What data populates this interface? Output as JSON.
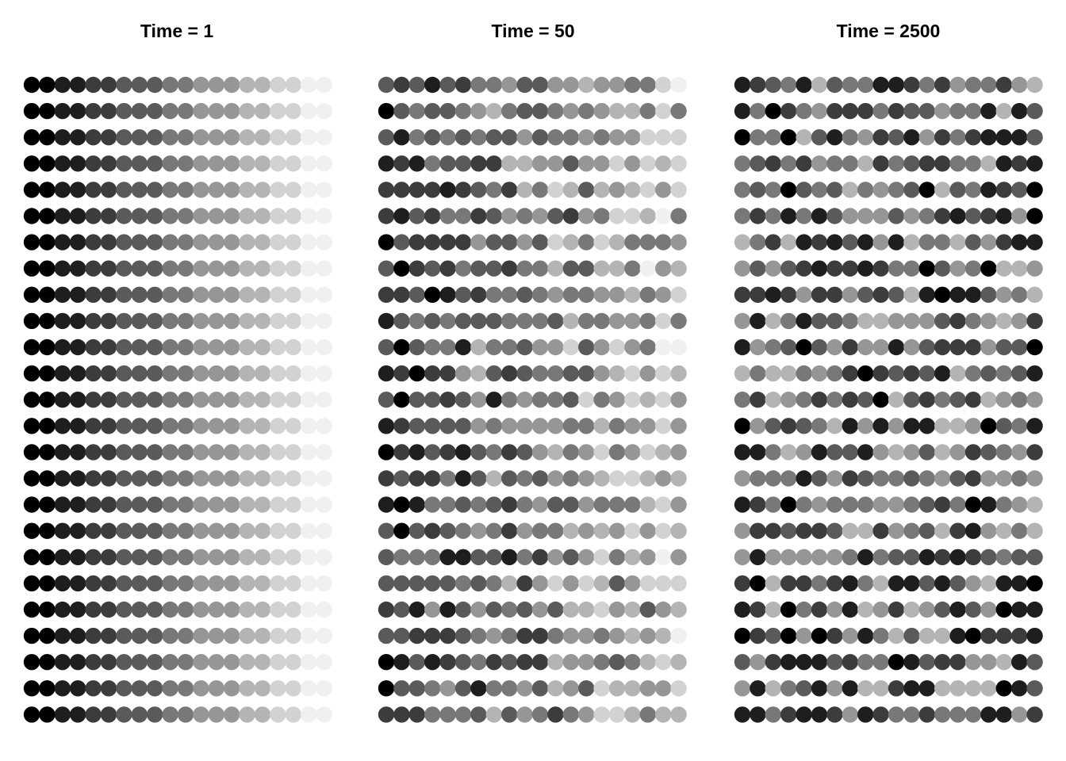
{
  "chart_data": {
    "type": "scatter",
    "description_free": true,
    "grid": false,
    "legend": "none",
    "color_scale": {
      "low": "#000000",
      "high": "#f0f0f0"
    },
    "panels": [
      {
        "title": "Time = 1",
        "mode": "ordered",
        "rows": 25,
        "cols": 20,
        "values": []
      },
      {
        "title": "Time = 50",
        "mode": "partial",
        "rows": 25,
        "cols": 20,
        "values": []
      },
      {
        "title": "Time = 2500",
        "mode": "mixed",
        "rows": 25,
        "cols": 20,
        "values": []
      }
    ]
  }
}
